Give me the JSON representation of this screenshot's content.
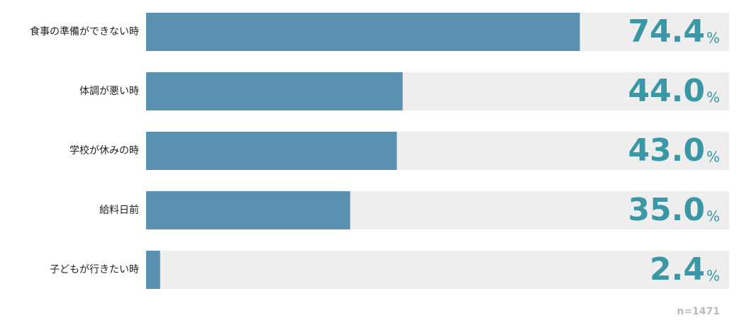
{
  "chart_data": {
    "type": "bar",
    "orientation": "horizontal",
    "categories": [
      "食事の準備ができない時",
      "体調が悪い時",
      "学校が休みの時",
      "給料日前",
      "子どもが行きたい時"
    ],
    "values": [
      74.4,
      44.0,
      43.0,
      35.0,
      2.4
    ],
    "value_labels": [
      "74.4",
      "44.0",
      "43.0",
      "35.0",
      "2.4"
    ],
    "unit": "%",
    "color": "#5a90b0",
    "track_color": "#eeeeee",
    "xlim": [
      0,
      100
    ],
    "note": "n=1471"
  }
}
